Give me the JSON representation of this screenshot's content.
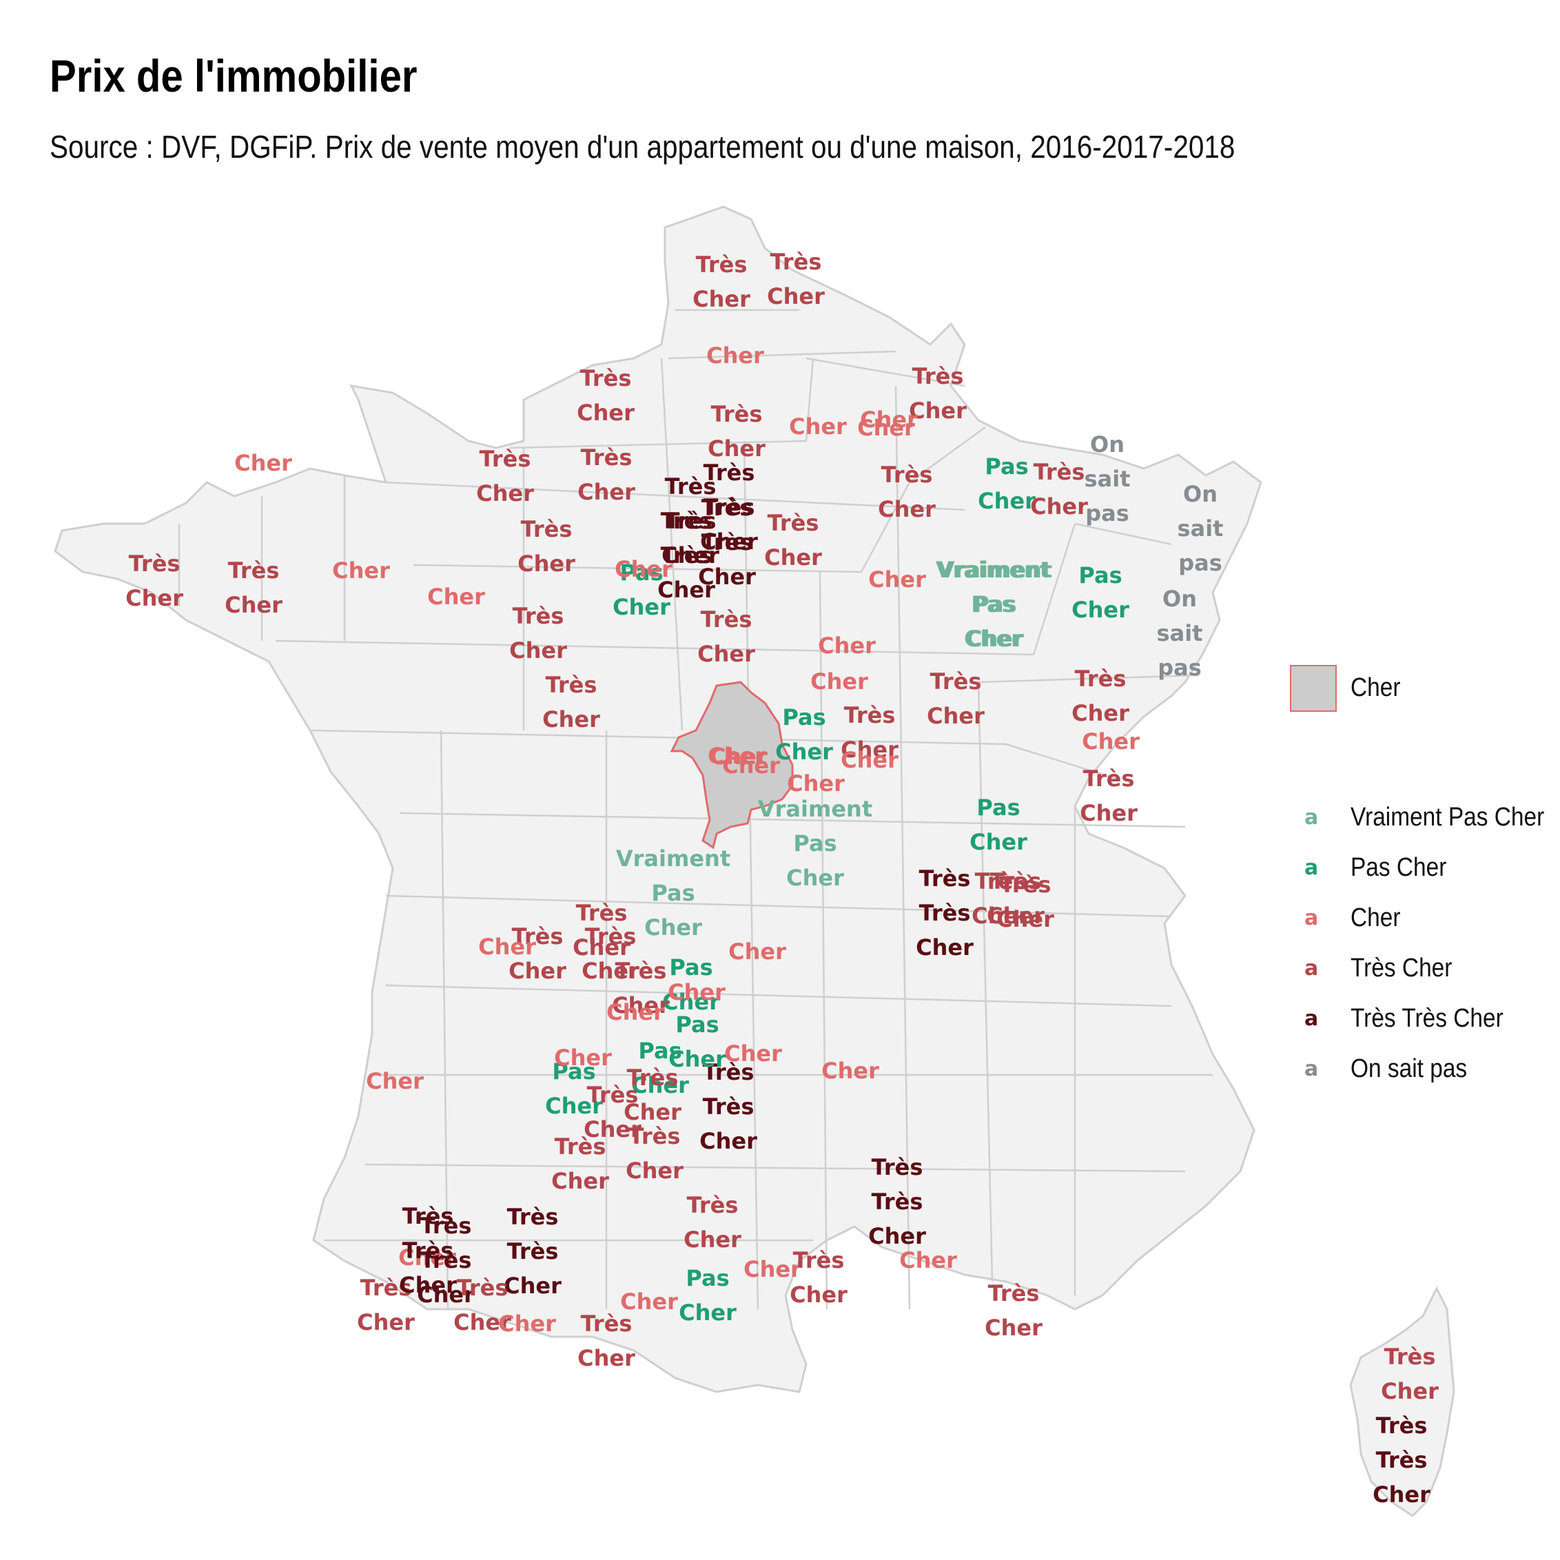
{
  "title": "Prix de l'immobilier",
  "subtitle": "Source : DVF, DGFiP. Prix de vente moyen d'un appartement ou d'une maison, 2016-2017-2018",
  "colors": {
    "Vraiment Pas Cher": "#6fb39a",
    "Pas Cher": "#1f9e74",
    "Cher": "#e06b6b",
    "Très Cher": "#b2464c",
    "Très Très Cher": "#5a0d14",
    "On sait pas": "#868c91",
    "land": "#f2f2f2",
    "border": "#cfcfcf",
    "highlight_fill": "#cccccc",
    "highlight_border": "#e06b6b"
  },
  "legend": {
    "highlight_label": "Cher",
    "key_glyph": "a",
    "categories": [
      "Vraiment Pas Cher",
      "Pas Cher",
      "Cher",
      "Très Cher",
      "Très Très Cher",
      "On sait pas"
    ]
  },
  "highlighted_department": {
    "category": "Cher",
    "label": "Cher"
  },
  "departments": [
    {
      "label": "Très Cher",
      "category": "Très Cher"
    },
    {
      "label": "Très Cher",
      "category": "Très Cher"
    },
    {
      "label": "Cher",
      "category": "Cher"
    },
    {
      "label": "Très Cher",
      "category": "Très Cher"
    },
    {
      "label": "Très Cher",
      "category": "Très Cher"
    },
    {
      "label": "Cher",
      "category": "Cher"
    },
    {
      "label": "Très Cher",
      "category": "Très Cher"
    },
    {
      "label": "Cher",
      "category": "Cher"
    },
    {
      "label": "Très Cher",
      "category": "Très Cher"
    },
    {
      "label": "Très Cher",
      "category": "Très Cher"
    },
    {
      "label": "Très Très Cher",
      "category": "Très Très Cher"
    },
    {
      "label": "Très Très Cher",
      "category": "Très Très Cher"
    },
    {
      "label": "Très Très Cher",
      "category": "Très Très Cher"
    },
    {
      "label": "Très Très Cher",
      "category": "Très Très Cher"
    },
    {
      "label": "Très Cher",
      "category": "Très Cher"
    },
    {
      "label": "Très Cher",
      "category": "Très Cher"
    },
    {
      "label": "Très Cher",
      "category": "Très Cher"
    },
    {
      "label": "Pas Cher",
      "category": "Pas Cher"
    },
    {
      "label": "Très Cher",
      "category": "Très Cher"
    },
    {
      "label": "On sait pas",
      "category": "On sait pas"
    },
    {
      "label": "On sait pas",
      "category": "On sait pas"
    },
    {
      "label": "On sait pas",
      "category": "On sait pas"
    },
    {
      "label": "Cher",
      "category": "Cher"
    },
    {
      "label": "Cher",
      "category": "Cher"
    },
    {
      "label": "Très Cher",
      "category": "Très Cher"
    },
    {
      "label": "Très Cher",
      "category": "Très Cher"
    },
    {
      "label": "Pas Cher",
      "category": "Pas Cher"
    },
    {
      "label": "Très Cher",
      "category": "Très Cher"
    },
    {
      "label": "Cher",
      "category": "Cher"
    },
    {
      "label": "Cher",
      "category": "Cher"
    },
    {
      "label": "Très Cher",
      "category": "Très Cher"
    },
    {
      "label": "Cher",
      "category": "Cher"
    },
    {
      "label": "Vraiment Pas Cher",
      "category": "Vraiment Pas Cher"
    },
    {
      "label": "Pas Cher",
      "category": "Pas Cher"
    },
    {
      "label": "Très Cher",
      "category": "Très Cher"
    },
    {
      "label": "Cher",
      "category": "Cher"
    },
    {
      "label": "Cher",
      "category": "Cher"
    },
    {
      "label": "Pas Cher",
      "category": "Pas Cher"
    },
    {
      "label": "Cher",
      "category": "Cher"
    },
    {
      "label": "Très Cher",
      "category": "Très Cher"
    },
    {
      "label": "Très Cher",
      "category": "Très Cher"
    },
    {
      "label": "Très Cher",
      "category": "Très Cher"
    },
    {
      "label": "Cher",
      "category": "Cher"
    },
    {
      "label": "Très Cher",
      "category": "Très Cher"
    },
    {
      "label": "Vraiment Pas Cher",
      "category": "Vraiment Pas Cher"
    },
    {
      "label": "Très Cher",
      "category": "Très Cher"
    },
    {
      "label": "Cher",
      "category": "Cher"
    },
    {
      "label": "Cher",
      "category": "Cher"
    },
    {
      "label": "Vraiment Pas Cher",
      "category": "Vraiment Pas Cher"
    },
    {
      "label": "Cher",
      "category": "Cher"
    },
    {
      "label": "Cher",
      "category": "Cher"
    },
    {
      "label": "Pas Cher",
      "category": "Pas Cher"
    },
    {
      "label": "Très Très Cher",
      "category": "Très Très Cher"
    },
    {
      "label": "Très Cher",
      "category": "Très Cher"
    },
    {
      "label": "Vraiment Pas Cher",
      "category": "Vraiment Pas Cher"
    },
    {
      "label": "Très Cher",
      "category": "Très Cher"
    },
    {
      "label": "Pas Cher",
      "category": "Pas Cher"
    },
    {
      "label": "Cher",
      "category": "Cher"
    },
    {
      "label": "Cher",
      "category": "Cher"
    },
    {
      "label": "Très Très Cher",
      "category": "Très Très Cher"
    },
    {
      "label": "Très Cher",
      "category": "Très Cher"
    },
    {
      "label": "Très Très Cher",
      "category": "Très Très Cher"
    },
    {
      "label": "Cher",
      "category": "Cher"
    },
    {
      "label": "Pas Cher",
      "category": "Pas Cher"
    },
    {
      "label": "Pas Cher",
      "category": "Pas Cher"
    },
    {
      "label": "Pas Cher",
      "category": "Pas Cher"
    },
    {
      "label": "Très Cher",
      "category": "Très Cher"
    },
    {
      "label": "Très Cher",
      "category": "Très Cher"
    },
    {
      "label": "Très Cher",
      "category": "Très Cher"
    },
    {
      "label": "Très Cher",
      "category": "Très Cher"
    },
    {
      "label": "Cher",
      "category": "Cher"
    },
    {
      "label": "Cher",
      "category": "Cher"
    },
    {
      "label": "Cher",
      "category": "Cher"
    },
    {
      "label": "Cher",
      "category": "Cher"
    },
    {
      "label": "Très Cher",
      "category": "Très Cher"
    },
    {
      "label": "Très Cher",
      "category": "Très Cher"
    },
    {
      "label": "Très Cher",
      "category": "Très Cher"
    },
    {
      "label": "Très Cher",
      "category": "Très Cher"
    },
    {
      "label": "Très Très Cher",
      "category": "Très Très Cher"
    },
    {
      "label": "Cher",
      "category": "Cher"
    },
    {
      "label": "Cher",
      "category": "Cher"
    },
    {
      "label": "Très Cher",
      "category": "Très Cher"
    },
    {
      "label": "Très Très Cher",
      "category": "Très Très Cher"
    },
    {
      "label": "Très Très Cher",
      "category": "Très Très Cher"
    },
    {
      "label": "Très Cher",
      "category": "Très Cher"
    },
    {
      "label": "Cher",
      "category": "Cher"
    },
    {
      "label": "Très Cher",
      "category": "Très Cher"
    },
    {
      "label": "Cher",
      "category": "Cher"
    },
    {
      "label": "Pas Cher",
      "category": "Pas Cher"
    },
    {
      "label": "Cher",
      "category": "Cher"
    },
    {
      "label": "Très Cher",
      "category": "Très Cher"
    },
    {
      "label": "Cher",
      "category": "Cher"
    },
    {
      "label": "Très Cher",
      "category": "Très Cher"
    },
    {
      "label": "Très Cher",
      "category": "Très Cher"
    },
    {
      "label": "Très Très Cher",
      "category": "Très Très Cher"
    }
  ]
}
